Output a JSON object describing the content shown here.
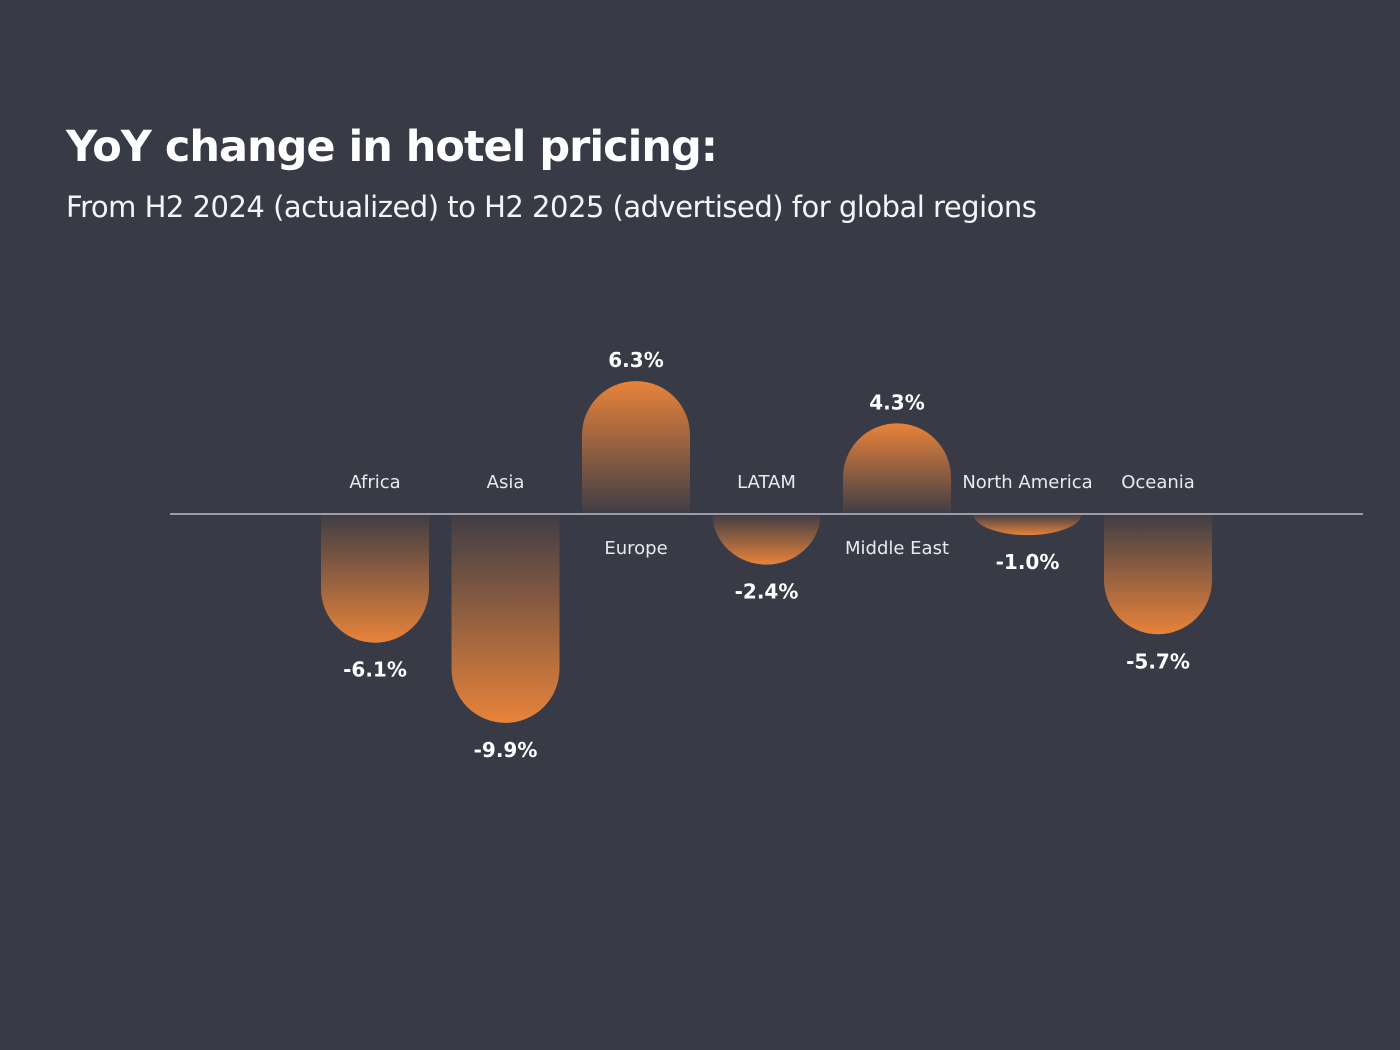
{
  "header": {
    "title": "YoY change in hotel pricing:",
    "subtitle": "From H2 2024 (actualized) to H2 2025 (advertised) for global regions"
  },
  "colors": {
    "background": "#383a46",
    "bar": "#e8833a",
    "baseline": "#9a9ca6"
  },
  "chart_data": {
    "type": "bar",
    "title": "YoY change in hotel pricing:",
    "subtitle": "From H2 2024 (actualized) to H2 2025 (advertised) for global regions",
    "categories": [
      "Africa",
      "Asia",
      "Europe",
      "LATAM",
      "Middle East",
      "North America",
      "Oceania"
    ],
    "values": [
      -6.1,
      -9.9,
      6.3,
      -2.4,
      4.3,
      -1.0,
      -5.7
    ],
    "labels": [
      "-6.1%",
      "-9.9%",
      "6.3%",
      "-2.4%",
      "4.3%",
      "-1.0%",
      "-5.7%"
    ],
    "unit": "%",
    "xlabel": "",
    "ylabel": "",
    "grid": false,
    "legend": "none"
  }
}
